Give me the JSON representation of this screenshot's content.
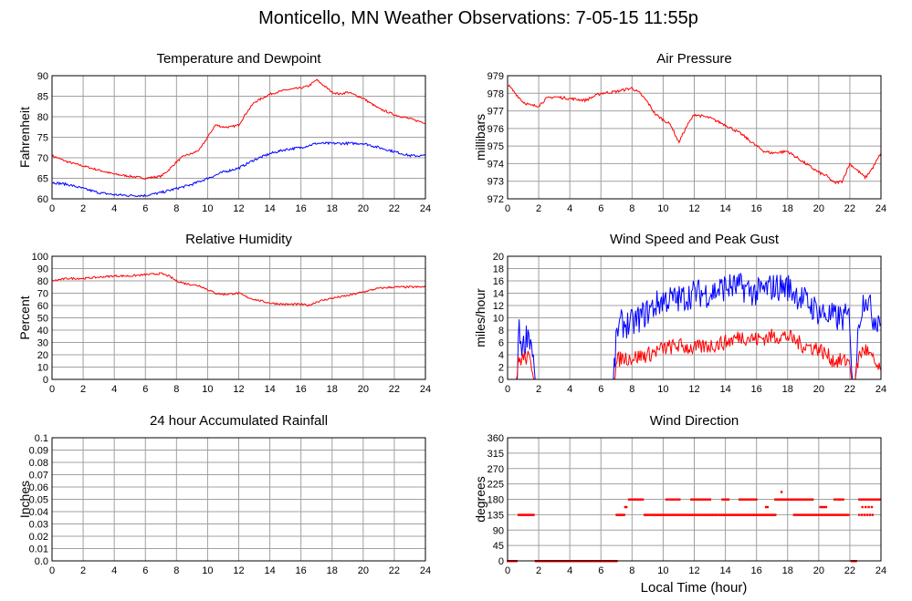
{
  "title": "Monticello, MN Weather Observations: 7-05-15 11:55p",
  "x_axis_label": "Local Time (hour)",
  "colors": {
    "red": "#ff0000",
    "blue": "#0000ff",
    "grid": "#a0a0a0",
    "frame": "#000000"
  },
  "chart_data": [
    {
      "id": "temp",
      "type": "line",
      "title": "Temperature and Dewpoint",
      "ylabel": "Fahrenheit",
      "xlim": [
        0,
        24
      ],
      "xticks": [
        0,
        2,
        4,
        6,
        8,
        10,
        12,
        14,
        16,
        18,
        20,
        22,
        24
      ],
      "ylim": [
        60,
        90
      ],
      "yticks": [
        60,
        65,
        70,
        75,
        80,
        85,
        90
      ],
      "grid": true,
      "series": [
        {
          "color": "#ff0000",
          "noise": 0.25,
          "x": [
            0,
            1,
            2,
            3,
            4,
            5,
            6,
            7,
            7.5,
            8,
            8.5,
            9,
            9.5,
            10,
            10.5,
            11,
            11.5,
            12,
            12.5,
            13,
            14,
            15,
            16,
            16.5,
            17,
            17.5,
            18,
            18.5,
            19,
            20,
            21,
            22,
            23,
            24
          ],
          "y": [
            70.5,
            69,
            68,
            67,
            66,
            65.5,
            65,
            65.5,
            67,
            69,
            70.5,
            71,
            72,
            75,
            78,
            77.5,
            77.5,
            78,
            81,
            83.5,
            85.5,
            86.5,
            87,
            87.5,
            89,
            87.5,
            86,
            85.5,
            86,
            84.5,
            82,
            80.5,
            79.5,
            78.5
          ]
        },
        {
          "color": "#0000ff",
          "noise": 0.3,
          "x": [
            0,
            1,
            2,
            3,
            4,
            5,
            6,
            7,
            8,
            9,
            10,
            11,
            12,
            13,
            14,
            15,
            16,
            17,
            18,
            19,
            20,
            21,
            22,
            23,
            24
          ],
          "y": [
            64,
            63.5,
            62.5,
            61.5,
            61,
            60.8,
            60.8,
            61.5,
            62.5,
            63.5,
            65,
            66.5,
            67.5,
            69.5,
            71,
            72,
            72.5,
            73.5,
            73.5,
            73.5,
            73.5,
            72.5,
            71.5,
            70.5,
            70.5
          ]
        }
      ]
    },
    {
      "id": "pressure",
      "type": "line",
      "title": "Air Pressure",
      "ylabel": "millibars",
      "xlim": [
        0,
        24
      ],
      "xticks": [
        0,
        2,
        4,
        6,
        8,
        10,
        12,
        14,
        16,
        18,
        20,
        22,
        24
      ],
      "ylim": [
        972,
        979
      ],
      "yticks": [
        972,
        973,
        974,
        975,
        976,
        977,
        978,
        979
      ],
      "grid": true,
      "series": [
        {
          "color": "#ff0000",
          "noise": 0.08,
          "x": [
            0,
            0.5,
            1,
            1.5,
            2,
            2.5,
            3,
            4,
            5,
            5.5,
            6,
            7,
            8,
            8.5,
            9,
            9.5,
            10,
            10.5,
            11,
            11.5,
            12,
            12.5,
            13,
            14,
            15,
            16,
            16.5,
            17,
            18,
            19,
            19.5,
            20,
            20.5,
            21,
            21.5,
            22,
            22.5,
            23,
            23.5,
            24
          ],
          "y": [
            978.5,
            978,
            977.5,
            977.3,
            977.3,
            977.7,
            977.8,
            977.7,
            977.6,
            977.8,
            978,
            978.1,
            978.3,
            978,
            977.5,
            976.8,
            976.5,
            976.2,
            975.2,
            976.1,
            976.8,
            976.7,
            976.6,
            976.2,
            975.7,
            975,
            974.7,
            974.6,
            974.7,
            974.1,
            973.8,
            973.5,
            973.3,
            972.9,
            973,
            974,
            973.6,
            973.2,
            973.8,
            974.6
          ]
        }
      ]
    },
    {
      "id": "humidity",
      "type": "line",
      "title": "Relative Humidity",
      "ylabel": "Percent",
      "xlim": [
        0,
        24
      ],
      "xticks": [
        0,
        2,
        4,
        6,
        8,
        10,
        12,
        14,
        16,
        18,
        20,
        22,
        24
      ],
      "ylim": [
        0,
        100
      ],
      "yticks": [
        0,
        10,
        20,
        30,
        40,
        50,
        60,
        70,
        80,
        90,
        100
      ],
      "grid": true,
      "series": [
        {
          "color": "#ff0000",
          "noise": 0.8,
          "x": [
            0,
            1,
            2,
            3,
            4,
            5,
            6,
            7,
            7.5,
            8,
            8.5,
            9,
            9.5,
            10,
            10.5,
            11,
            12,
            12.5,
            13,
            14,
            15,
            16,
            16.5,
            17,
            18,
            19,
            20,
            21,
            22,
            23,
            24
          ],
          "y": [
            80,
            82,
            82,
            83,
            84,
            84,
            85,
            86,
            84,
            80,
            78,
            77,
            76,
            73,
            70,
            69,
            70,
            67,
            65,
            62,
            61,
            61,
            60,
            63,
            66,
            68,
            71,
            74,
            75,
            75,
            75
          ]
        }
      ]
    },
    {
      "id": "wind",
      "type": "line",
      "title": "Wind Speed and Peak Gust",
      "ylabel": "miles/hour",
      "xlim": [
        0,
        24
      ],
      "xticks": [
        0,
        2,
        4,
        6,
        8,
        10,
        12,
        14,
        16,
        18,
        20,
        22,
        24
      ],
      "ylim": [
        0,
        20
      ],
      "yticks": [
        0,
        2,
        4,
        6,
        8,
        10,
        12,
        14,
        16,
        18,
        20
      ],
      "grid": true,
      "series": [
        {
          "color": "#0000ff",
          "noise": 2.4,
          "x": [
            0,
            0.6,
            0.7,
            1,
            1.3,
            1.6,
            1.75,
            2,
            6.8,
            7.05,
            7.3,
            8,
            9,
            10,
            11,
            12,
            13,
            14,
            15,
            16,
            17,
            18,
            19,
            20,
            21,
            22,
            22.15,
            22.35,
            22.6,
            23,
            23.5,
            24
          ],
          "y": [
            0,
            0,
            8,
            5,
            8,
            5,
            0,
            0,
            0,
            8,
            9,
            9,
            11,
            13,
            13,
            14,
            14,
            15,
            15,
            14,
            15,
            15,
            13,
            11,
            10,
            10,
            0,
            0,
            10,
            14,
            10,
            10
          ]
        },
        {
          "color": "#ff0000",
          "noise": 1.3,
          "x": [
            0,
            0.6,
            0.7,
            1,
            1.3,
            1.6,
            1.75,
            2,
            6.8,
            7.05,
            7.3,
            8,
            9,
            10,
            11,
            12,
            13,
            14,
            15,
            16,
            17,
            18,
            19,
            20,
            21,
            22,
            22.15,
            22.35,
            22.6,
            23,
            23.5,
            24
          ],
          "y": [
            0,
            0,
            3,
            3.5,
            3.5,
            2,
            0,
            0,
            0,
            3,
            3.5,
            3.5,
            4,
            5,
            5.5,
            5,
            5.5,
            6,
            7,
            6.5,
            7,
            7,
            5.5,
            5,
            3,
            3,
            0,
            0,
            4,
            5,
            3,
            1
          ]
        }
      ]
    },
    {
      "id": "rain",
      "type": "line",
      "title": "24 hour Accumulated Rainfall",
      "ylabel": "Inches",
      "xlim": [
        0,
        24
      ],
      "xticks": [
        0,
        2,
        4,
        6,
        8,
        10,
        12,
        14,
        16,
        18,
        20,
        22,
        24
      ],
      "ylim": [
        0,
        0.1
      ],
      "yticks": [
        0.0,
        0.01,
        0.02,
        0.03,
        0.04,
        0.05,
        0.06,
        0.07,
        0.08,
        0.09,
        0.1
      ],
      "ytick_labels": [
        "0.0",
        "0.01",
        "0.02",
        "0.03",
        "0.04",
        "0.05",
        "0.06",
        "0.07",
        "0.08",
        "0.09",
        "0.1"
      ],
      "grid": true,
      "series": [
        {
          "color": "#ff0000",
          "noise": 0,
          "x": [
            0,
            24
          ],
          "y": [
            0,
            0
          ]
        }
      ]
    },
    {
      "id": "direction",
      "type": "scatter",
      "title": "Wind Direction",
      "ylabel": "degrees",
      "xlim": [
        0,
        24
      ],
      "xticks": [
        0,
        2,
        4,
        6,
        8,
        10,
        12,
        14,
        16,
        18,
        20,
        22,
        24
      ],
      "ylim": [
        0,
        360
      ],
      "yticks": [
        0,
        45,
        90,
        135,
        180,
        225,
        270,
        315,
        360
      ],
      "grid": true,
      "series": [
        {
          "color": "#ff0000",
          "segments": [
            {
              "y": 0,
              "x0": 0,
              "x1": 0.6,
              "step": 0.08
            },
            {
              "y": 135,
              "x0": 0.7,
              "x1": 1.7,
              "step": 0.08
            },
            {
              "y": 0,
              "x0": 1.8,
              "x1": 7.0,
              "step": 0.08
            },
            {
              "y": 135,
              "x0": 7.0,
              "x1": 7.5,
              "step": 0.08
            },
            {
              "y": 158,
              "x0": 7.55,
              "x1": 7.7,
              "step": 0.08
            },
            {
              "y": 180,
              "x0": 7.8,
              "x1": 8.7,
              "step": 0.11
            },
            {
              "y": 135,
              "x0": 8.8,
              "x1": 13.5,
              "step": 0.09
            },
            {
              "y": 180,
              "x0": 10.2,
              "x1": 11.1,
              "step": 0.14
            },
            {
              "y": 180,
              "x0": 11.8,
              "x1": 13.1,
              "step": 0.11
            },
            {
              "y": 180,
              "x0": 13.8,
              "x1": 14.2,
              "step": 0.13
            },
            {
              "y": 135,
              "x0": 13.6,
              "x1": 17.2,
              "step": 0.08
            },
            {
              "y": 180,
              "x0": 14.9,
              "x1": 16.0,
              "step": 0.12
            },
            {
              "y": 158,
              "x0": 16.6,
              "x1": 16.7,
              "step": 0.1
            },
            {
              "y": 180,
              "x0": 17.2,
              "x1": 19.6,
              "step": 0.08
            },
            {
              "y": 202,
              "x0": 17.6,
              "x1": 17.65,
              "step": 0.1
            },
            {
              "y": 135,
              "x0": 18.4,
              "x1": 21.9,
              "step": 0.1
            },
            {
              "y": 158,
              "x0": 20.1,
              "x1": 20.5,
              "step": 0.12
            },
            {
              "y": 180,
              "x0": 21.0,
              "x1": 21.6,
              "step": 0.14
            },
            {
              "y": 0,
              "x0": 22.1,
              "x1": 22.4,
              "step": 0.07
            },
            {
              "y": 180,
              "x0": 22.6,
              "x1": 24.0,
              "step": 0.09
            },
            {
              "y": 135,
              "x0": 22.6,
              "x1": 23.6,
              "step": 0.17
            },
            {
              "y": 158,
              "x0": 22.8,
              "x1": 23.4,
              "step": 0.2
            }
          ]
        }
      ]
    }
  ]
}
